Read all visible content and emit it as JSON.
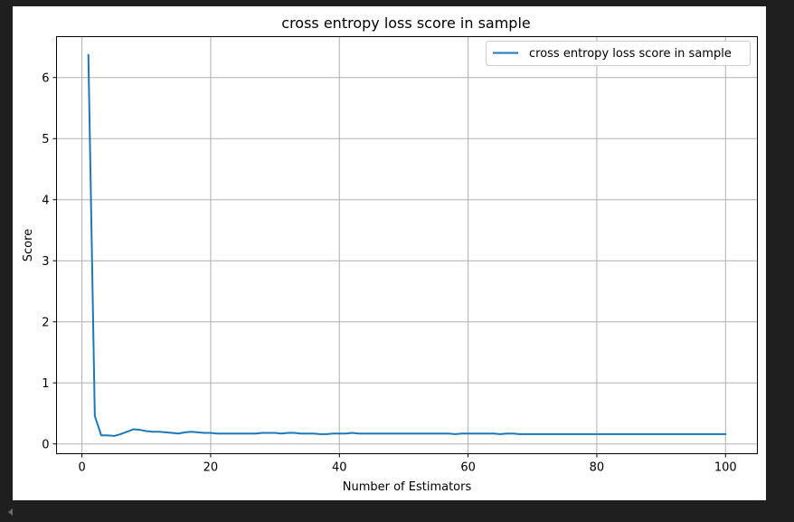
{
  "chart_data": {
    "type": "line",
    "title": "cross entropy loss score in sample",
    "xlabel": "Number of Estimators",
    "ylabel": "Score",
    "xlim": [
      -3.95,
      104.95
    ],
    "ylim": [
      -0.16,
      6.67
    ],
    "xticks": [
      0,
      20,
      40,
      60,
      80,
      100
    ],
    "yticks": [
      0,
      1,
      2,
      3,
      4,
      5,
      6
    ],
    "grid": true,
    "legend_position": "top-right",
    "series": [
      {
        "name": "cross entropy loss score in sample",
        "color": "#1f77b4",
        "x": [
          1,
          2,
          3,
          4,
          5,
          6,
          7,
          8,
          9,
          10,
          11,
          12,
          13,
          14,
          15,
          16,
          17,
          18,
          19,
          20,
          21,
          22,
          23,
          24,
          25,
          26,
          27,
          28,
          29,
          30,
          31,
          32,
          33,
          34,
          35,
          36,
          37,
          38,
          39,
          40,
          41,
          42,
          43,
          44,
          45,
          46,
          47,
          48,
          49,
          50,
          51,
          52,
          53,
          54,
          55,
          56,
          57,
          58,
          59,
          60,
          61,
          62,
          63,
          64,
          65,
          66,
          67,
          68,
          69,
          70,
          71,
          72,
          73,
          74,
          75,
          76,
          77,
          78,
          79,
          80,
          81,
          82,
          83,
          84,
          85,
          86,
          87,
          88,
          89,
          90,
          91,
          92,
          93,
          94,
          95,
          96,
          97,
          98,
          99,
          100
        ],
        "y": [
          6.37,
          0.46,
          0.14,
          0.14,
          0.13,
          0.16,
          0.2,
          0.24,
          0.23,
          0.21,
          0.2,
          0.2,
          0.19,
          0.18,
          0.17,
          0.19,
          0.2,
          0.19,
          0.18,
          0.18,
          0.17,
          0.17,
          0.17,
          0.17,
          0.17,
          0.17,
          0.17,
          0.18,
          0.18,
          0.18,
          0.17,
          0.18,
          0.18,
          0.17,
          0.17,
          0.17,
          0.16,
          0.16,
          0.17,
          0.17,
          0.17,
          0.18,
          0.17,
          0.17,
          0.17,
          0.17,
          0.17,
          0.17,
          0.17,
          0.17,
          0.17,
          0.17,
          0.17,
          0.17,
          0.17,
          0.17,
          0.17,
          0.16,
          0.17,
          0.17,
          0.17,
          0.17,
          0.17,
          0.17,
          0.16,
          0.17,
          0.17,
          0.16,
          0.16,
          0.16,
          0.16,
          0.16,
          0.16,
          0.16,
          0.16,
          0.16,
          0.16,
          0.16,
          0.16,
          0.16,
          0.16,
          0.16,
          0.16,
          0.16,
          0.16,
          0.16,
          0.16,
          0.16,
          0.16,
          0.16,
          0.16,
          0.16,
          0.16,
          0.16,
          0.16,
          0.16,
          0.16,
          0.16,
          0.16,
          0.16
        ]
      }
    ]
  }
}
